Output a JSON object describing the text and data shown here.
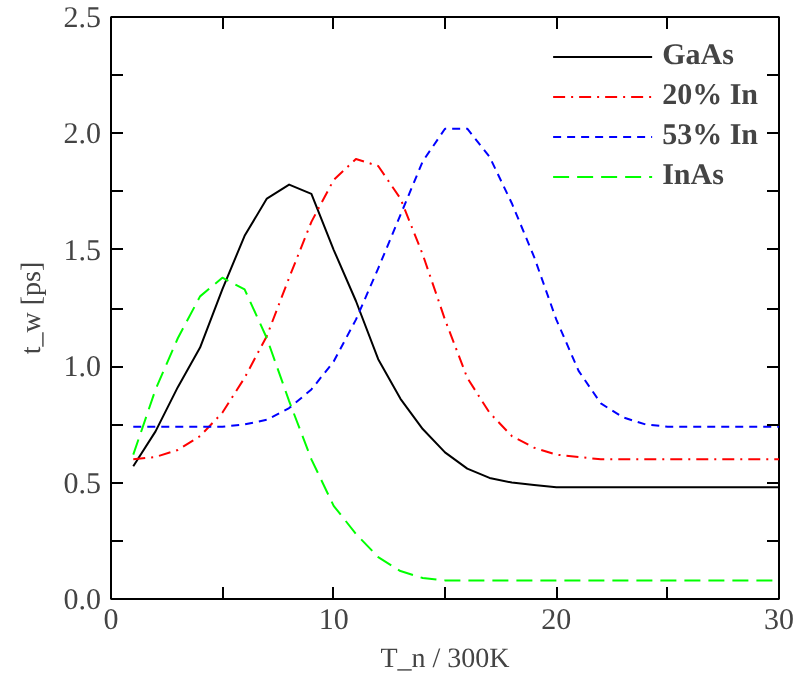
{
  "chart_data": {
    "type": "line",
    "xlabel": "T_n / 300K",
    "ylabel": "t_w [ps]",
    "x": [
      1,
      2,
      3,
      4,
      5,
      6,
      7,
      8,
      9,
      10,
      11,
      12,
      13,
      14,
      15,
      16,
      17,
      18,
      19,
      20,
      21,
      22,
      23,
      24,
      25,
      30
    ],
    "series": [
      {
        "name": "GaAs",
        "color": "#000000",
        "line_style": "solid",
        "values": [
          0.57,
          0.72,
          0.91,
          1.08,
          1.33,
          1.56,
          1.72,
          1.78,
          1.74,
          1.5,
          1.28,
          1.03,
          0.86,
          0.73,
          0.63,
          0.56,
          0.52,
          0.5,
          0.49,
          0.48,
          0.48,
          0.48,
          0.48,
          0.48,
          0.48,
          0.48
        ]
      },
      {
        "name": "20% In",
        "color": "#ff0000",
        "line_style": "dashdot",
        "values": [
          0.6,
          0.61,
          0.64,
          0.7,
          0.8,
          0.95,
          1.13,
          1.38,
          1.62,
          1.8,
          1.89,
          1.86,
          1.72,
          1.48,
          1.2,
          0.95,
          0.8,
          0.7,
          0.65,
          0.62,
          0.61,
          0.6,
          0.6,
          0.6,
          0.6,
          0.6
        ]
      },
      {
        "name": "53% In",
        "color": "#0000ff",
        "line_style": "dashed",
        "values": [
          0.74,
          0.74,
          0.74,
          0.74,
          0.74,
          0.75,
          0.77,
          0.82,
          0.9,
          1.02,
          1.2,
          1.42,
          1.65,
          1.88,
          2.02,
          2.02,
          1.9,
          1.7,
          1.47,
          1.2,
          0.98,
          0.84,
          0.78,
          0.75,
          0.74,
          0.74
        ]
      },
      {
        "name": "InAs",
        "color": "#00ff00",
        "line_style": "longdash",
        "values": [
          0.62,
          0.9,
          1.12,
          1.3,
          1.38,
          1.33,
          1.12,
          0.85,
          0.6,
          0.4,
          0.28,
          0.18,
          0.12,
          0.09,
          0.08,
          0.08,
          0.08,
          0.08,
          0.08,
          0.08,
          0.08,
          0.08,
          0.08,
          0.08,
          0.08,
          0.08
        ]
      }
    ],
    "xlim": [
      0,
      30
    ],
    "xticks": [
      0,
      {
        "value": 5,
        "label": null
      },
      10,
      {
        "value": 15,
        "label": null
      },
      20,
      {
        "value": 25,
        "label": null
      },
      30
    ],
    "ylim": [
      0,
      2.5
    ],
    "yticks": [
      "0.0",
      {
        "value": 0.25,
        "label": null
      },
      {
        "value": 0.5,
        "label": "0.5"
      },
      {
        "value": 0.75,
        "label": null
      },
      {
        "value": 1.0,
        "label": "1.0"
      },
      {
        "value": 1.25,
        "label": null
      },
      {
        "value": 1.5,
        "label": "1.5"
      },
      {
        "value": 1.75,
        "label": null
      },
      {
        "value": 2.0,
        "label": "2.0"
      },
      {
        "value": 2.25,
        "label": null
      },
      {
        "value": 2.5,
        "label": "2.5"
      }
    ],
    "grid": false,
    "legend": "top right"
  }
}
